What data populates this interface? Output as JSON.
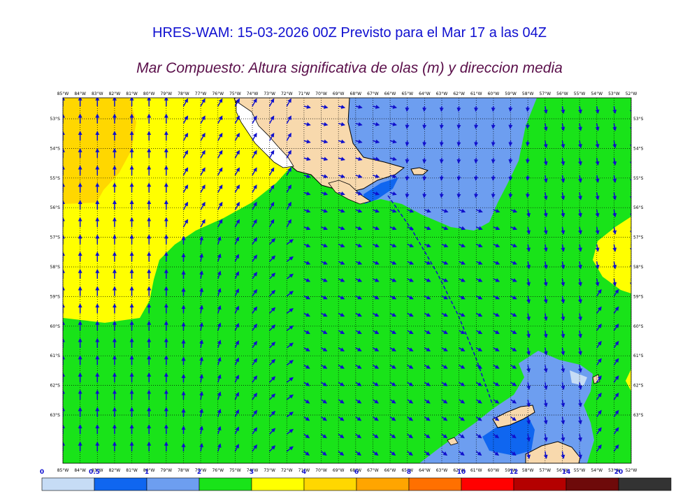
{
  "header": {
    "title": "HRES-WAM: 15-03-2026 00Z Previsto para el Mar 17 a las 04Z",
    "subtitle": "Mar Compuesto: Altura significativa de olas (m) y direccion media"
  },
  "map": {
    "lon_labels": [
      "85°W",
      "84°W",
      "83°W",
      "82°W",
      "81°W",
      "80°W",
      "79°W",
      "78°W",
      "77°W",
      "76°W",
      "75°W",
      "74°W",
      "73°W",
      "72°W",
      "71°W",
      "70°W",
      "69°W",
      "68°W",
      "67°W",
      "66°W",
      "65°W",
      "64°W",
      "63°W",
      "62°W",
      "61°W",
      "60°W",
      "59°W",
      "58°W",
      "57°W",
      "56°W",
      "55°W",
      "54°W",
      "53°W",
      "52°W"
    ],
    "lat_labels": [
      "53°S",
      "54°S",
      "55°S",
      "56°S",
      "57°S",
      "58°S",
      "59°S",
      "60°S",
      "61°S",
      "62°S",
      "63°S"
    ],
    "colors": {
      "land": "#f8d9ad",
      "wave_0_0.5": "#c6dcf5",
      "wave_0.5_1": "#0f66f0",
      "wave_1_1.5": "#6d9ef0",
      "wave_1.5_2": "#19e319",
      "wave_2_3": "#ffff00",
      "wave_3_4": "#ffd700",
      "wave_4_5": "#ffa500",
      "wave_5_6": "#ff7000",
      "wave_6_8": "#ff0000",
      "wave_8_10": "#b40000",
      "wave_10_15": "#6e0a0a",
      "wave_15_20": "#333333",
      "arrows": "#1010cc",
      "grid": "#000000"
    }
  },
  "legend": {
    "labels": [
      "0",
      "0.5",
      "1",
      "2",
      "3",
      "4",
      "6",
      "8",
      "10",
      "12",
      "14",
      "20"
    ],
    "colors": [
      "#c6dcf5",
      "#0f66f0",
      "#6d9ef0",
      "#19e319",
      "#ffff00",
      "#ffd700",
      "#ffa500",
      "#ff7000",
      "#ff0000",
      "#b40000",
      "#6e0a0a",
      "#333333"
    ]
  }
}
